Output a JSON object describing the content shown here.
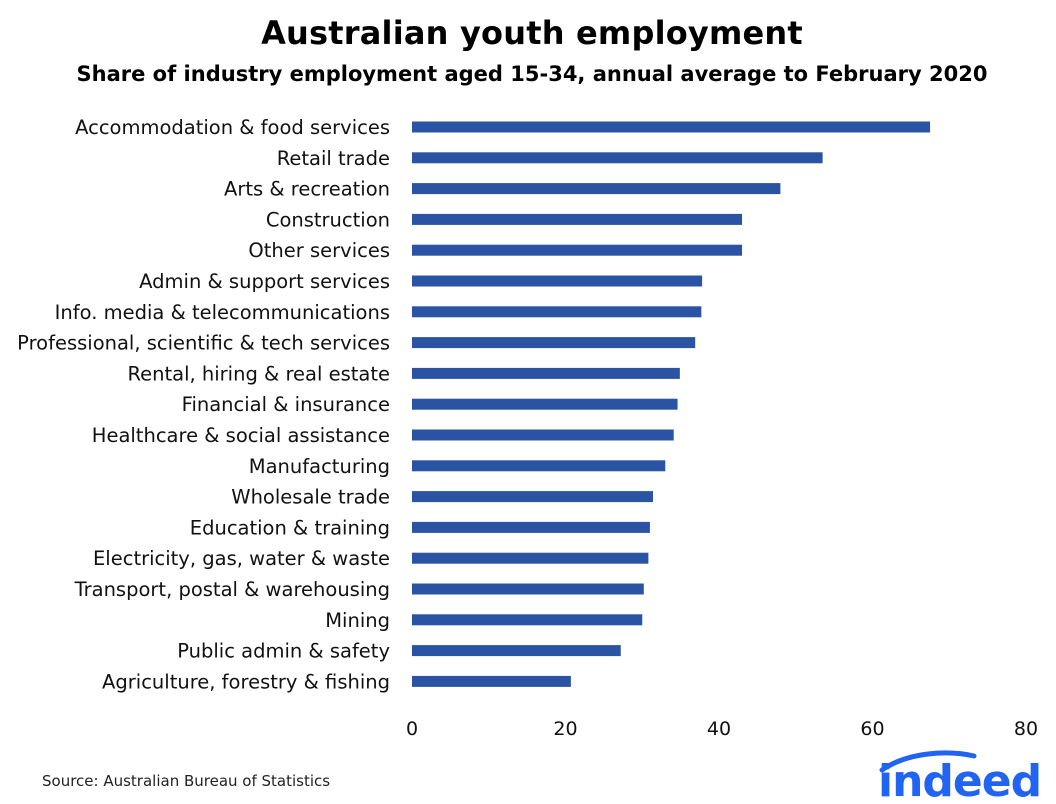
{
  "header": {
    "title": "Australian youth employment",
    "subtitle": "Share of industry employment aged 15-34, annual average to February 2020"
  },
  "footer": {
    "source": "Source: Australian Bureau of Statistics",
    "logo_text": "indeed"
  },
  "colors": {
    "bar": "#2a54a3",
    "brand": "#2164f3"
  },
  "chart_data": {
    "type": "bar",
    "orientation": "horizontal",
    "title": "Australian youth employment",
    "subtitle": "Share of industry employment aged 15-34, annual average to February 2020",
    "xlabel": "",
    "ylabel": "",
    "xlim": [
      0,
      80
    ],
    "xticks": [
      0,
      20,
      40,
      60,
      80
    ],
    "grid": false,
    "categories": [
      "Accommodation & food services",
      "Retail trade",
      "Arts & recreation",
      "Construction",
      "Other services",
      "Admin & support services",
      "Info. media & telecommunications",
      "Professional, scientific & tech services",
      "Rental, hiring & real estate",
      "Financial & insurance",
      "Healthcare & social assistance",
      "Manufacturing",
      "Wholesale trade",
      "Education & training",
      "Electricity, gas, water & waste",
      "Transport, postal & warehousing",
      "Mining",
      "Public admin & safety",
      "Agriculture, forestry & fishing"
    ],
    "values": [
      67.5,
      53.5,
      48.0,
      43.0,
      43.0,
      37.8,
      37.7,
      36.9,
      34.9,
      34.6,
      34.1,
      33.0,
      31.4,
      31.0,
      30.8,
      30.2,
      30.0,
      27.2,
      20.7
    ]
  }
}
